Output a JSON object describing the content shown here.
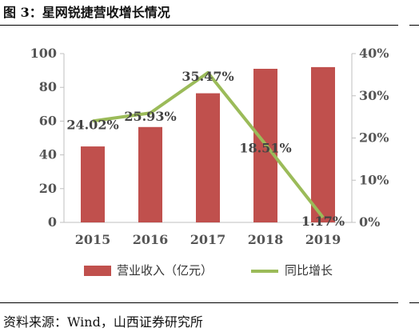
{
  "figure": {
    "title": "图 3：星网锐捷营收增长情况",
    "source": "资料来源：Wind，山西证券研究所"
  },
  "colors": {
    "bar": "#c0504d",
    "line": "#9bbb59",
    "axis": "#bfbfbf",
    "tick_text": "#555555"
  },
  "chart_data": {
    "type": "bar",
    "categories": [
      "2015",
      "2016",
      "2017",
      "2018",
      "2019"
    ],
    "series": [
      {
        "name": "营业收入（亿元）",
        "type": "bar",
        "axis": "left",
        "values": [
          45,
          56.5,
          76.5,
          91,
          92
        ]
      },
      {
        "name": "同比增长",
        "type": "line",
        "axis": "right",
        "values": [
          24.02,
          25.93,
          35.47,
          18.51,
          1.17
        ],
        "labels": [
          "24.02%",
          "25.93%",
          "35.47%",
          "18.51%",
          "1.17%"
        ]
      }
    ],
    "y_left": {
      "min": 0,
      "max": 100,
      "ticks": [
        0,
        20,
        40,
        60,
        80,
        100
      ]
    },
    "y_right": {
      "min": 0,
      "max": 40,
      "ticks": [
        0,
        10,
        20,
        30,
        40
      ],
      "tick_labels": [
        "0%",
        "10%",
        "20%",
        "30%",
        "40%"
      ]
    },
    "legend_position": "bottom"
  }
}
